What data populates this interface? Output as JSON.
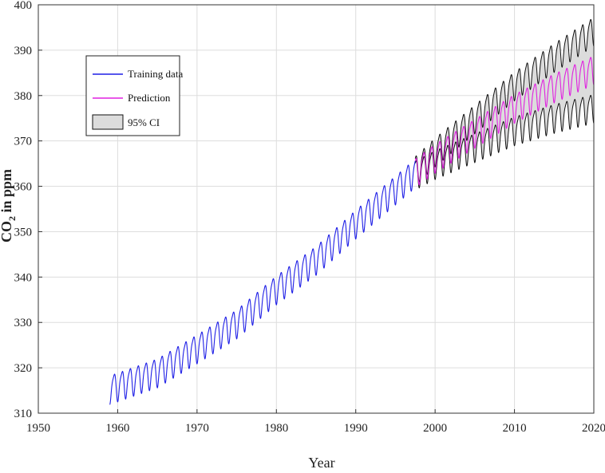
{
  "chart_data": {
    "type": "line",
    "xlabel": "Year",
    "ylabel_main": "CO",
    "ylabel_sub": "2",
    "ylabel_rest": " in ppm",
    "xlim": [
      1950,
      2020
    ],
    "ylim": [
      310,
      400
    ],
    "xticks": [
      1950,
      1960,
      1970,
      1980,
      1990,
      2000,
      2010,
      2020
    ],
    "yticks": [
      310,
      320,
      330,
      340,
      350,
      360,
      370,
      380,
      390,
      400
    ],
    "grid": true,
    "legend_position": "upper-left",
    "legend": {
      "training": "Training data",
      "prediction": "Prediction",
      "ci": "95% CI"
    },
    "colors": {
      "training": "#1f1fe6",
      "prediction": "#e020e0",
      "ci_fill": "#dcdcdc",
      "ci_line": "#111111",
      "grid": "#dddddd"
    },
    "series": [
      {
        "name": "Training data",
        "x_range": [
          1959.0,
          1997.5
        ],
        "trend_points": [
          [
            1959,
            315.5
          ],
          [
            1965,
            319.2
          ],
          [
            1970,
            324.5
          ],
          [
            1975,
            330.0
          ],
          [
            1980,
            337.5
          ],
          [
            1985,
            344.0
          ],
          [
            1990,
            352.0
          ],
          [
            1995,
            359.5
          ],
          [
            1997.5,
            363.3
          ]
        ],
        "seasonal_amplitude": 3.0
      },
      {
        "name": "Prediction",
        "x_range": [
          1997.5,
          2020.0
        ],
        "trend_points": [
          [
            1997.5,
            363.3
          ],
          [
            2000,
            366.5
          ],
          [
            2005,
            372.0
          ],
          [
            2010,
            377.5
          ],
          [
            2015,
            382.0
          ],
          [
            2020,
            386.0
          ]
        ],
        "seasonal_amplitude": 3.0
      },
      {
        "name": "95% CI",
        "x_range": [
          1997.5,
          2020.0
        ],
        "half_width_start": 0.5,
        "half_width_end": 8.5
      }
    ]
  }
}
